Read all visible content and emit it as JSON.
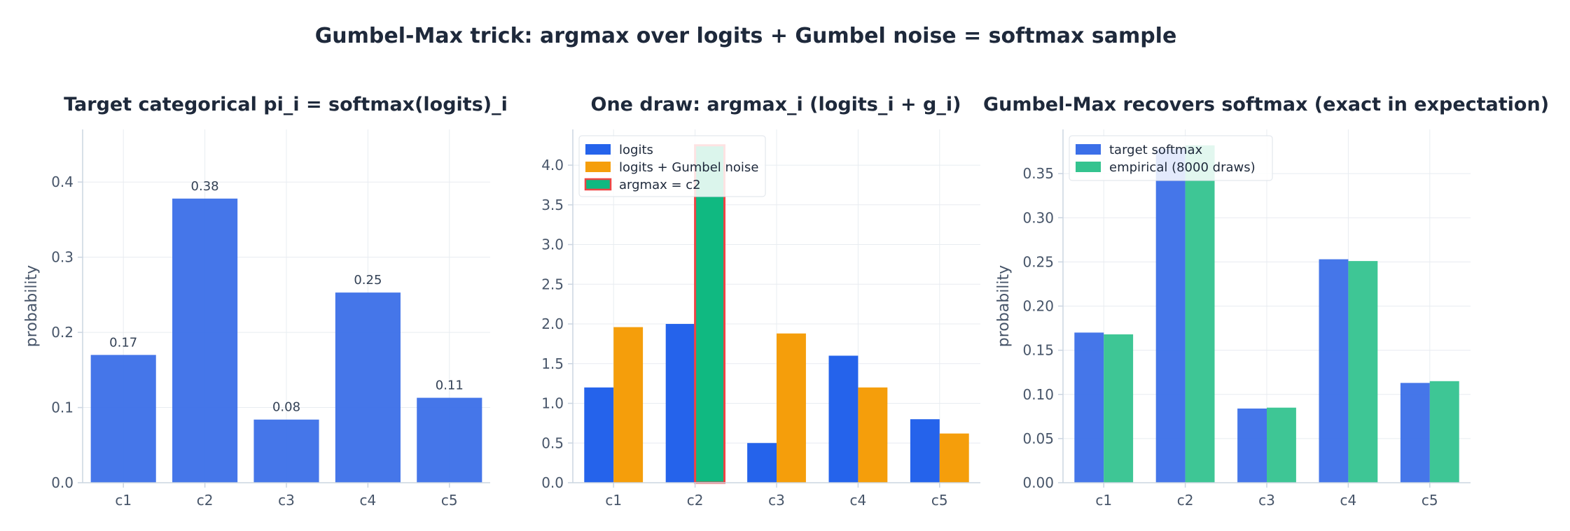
{
  "figure_title": "Gumbel-Max trick: argmax over logits + Gumbel noise = softmax sample",
  "colors": {
    "blue": "#3b6fe8",
    "blue_dark": "#2563eb",
    "orange": "#f59e0b",
    "green": "#10b981",
    "green_light": "#34c38f",
    "highlight_edge": "#ef4444"
  },
  "chart_data": [
    {
      "type": "bar",
      "title": "Target categorical  pi_i = softmax(logits)_i",
      "categories": [
        "c1",
        "c2",
        "c3",
        "c4",
        "c5"
      ],
      "ylabel": "probability",
      "xlabel": "",
      "ylim": [
        0,
        0.47
      ],
      "yticks": [
        0.0,
        0.1,
        0.2,
        0.3,
        0.4
      ],
      "ytick_labels": [
        "0.0",
        "0.1",
        "0.2",
        "0.3",
        "0.4"
      ],
      "grid": true,
      "series": [
        {
          "values": [
            0.17,
            0.378,
            0.084,
            0.253,
            0.113
          ],
          "labels": [
            "0.17",
            "0.38",
            "0.08",
            "0.25",
            "0.11"
          ]
        }
      ]
    },
    {
      "type": "bar",
      "title": "One draw:  argmax_i (logits_i + g_i)",
      "categories": [
        "c1",
        "c2",
        "c3",
        "c4",
        "c5"
      ],
      "ylabel": "",
      "xlabel": "",
      "ylim": [
        0,
        4.45
      ],
      "yticks": [
        0.0,
        0.5,
        1.0,
        1.5,
        2.0,
        2.5,
        3.0,
        3.5,
        4.0
      ],
      "ytick_labels": [
        "0.0",
        "0.5",
        "1.0",
        "1.5",
        "2.0",
        "2.5",
        "3.0",
        "3.5",
        "4.0"
      ],
      "grid": true,
      "legend_position": "top-left",
      "legend": [
        "logits",
        "logits + Gumbel noise",
        "argmax = c2"
      ],
      "highlight_index": 1,
      "series": [
        {
          "name": "logits",
          "values": [
            1.2,
            2.0,
            0.5,
            1.6,
            0.8
          ]
        },
        {
          "name": "logits + Gumbel noise",
          "values": [
            1.96,
            4.25,
            1.88,
            1.2,
            0.62
          ]
        }
      ]
    },
    {
      "type": "bar",
      "title": "Gumbel-Max recovers softmax (exact in expectation)",
      "categories": [
        "c1",
        "c2",
        "c3",
        "c4",
        "c5"
      ],
      "ylabel": "probability",
      "xlabel": "",
      "ylim": [
        0,
        0.4
      ],
      "yticks": [
        0.0,
        0.05,
        0.1,
        0.15,
        0.2,
        0.25,
        0.3,
        0.35
      ],
      "ytick_labels": [
        "0.00",
        "0.05",
        "0.10",
        "0.15",
        "0.20",
        "0.25",
        "0.30",
        "0.35"
      ],
      "grid": true,
      "legend_position": "top-left",
      "series": [
        {
          "name": "target softmax",
          "values": [
            0.17,
            0.378,
            0.084,
            0.253,
            0.113
          ]
        },
        {
          "name": "empirical (8000 draws)",
          "values": [
            0.168,
            0.382,
            0.085,
            0.251,
            0.115
          ]
        }
      ]
    }
  ]
}
